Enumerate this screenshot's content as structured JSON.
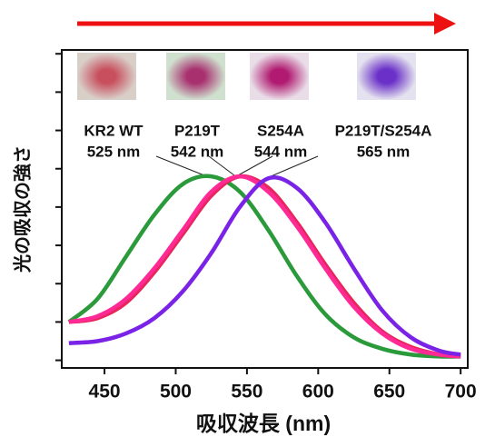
{
  "chart_data": {
    "type": "line",
    "x_label": "吸収波長 (nm)",
    "y_label": "光の吸収の強さ",
    "x": [
      425,
      445,
      465,
      485,
      505,
      525,
      545,
      565,
      585,
      605,
      625,
      645,
      665,
      685,
      700
    ],
    "series": [
      {
        "color": "#2a9a3a",
        "values": [
          1.0,
          1.6,
          2.7,
          3.8,
          4.6,
          4.8,
          4.4,
          3.4,
          2.2,
          1.2,
          0.6,
          0.3,
          0.15,
          0.1,
          0.1
        ]
      },
      {
        "color": "#e8255c",
        "values": [
          1.0,
          1.1,
          1.5,
          2.3,
          3.3,
          4.3,
          4.8,
          4.5,
          3.6,
          2.5,
          1.5,
          0.75,
          0.35,
          0.15,
          0.1
        ]
      },
      {
        "color": "#ff2a96",
        "values": [
          1.0,
          1.15,
          1.6,
          2.4,
          3.4,
          4.4,
          4.8,
          4.4,
          3.5,
          2.4,
          1.4,
          0.7,
          0.3,
          0.15,
          0.1
        ]
      },
      {
        "color": "#7a22e6",
        "values": [
          0.45,
          0.5,
          0.7,
          1.1,
          1.8,
          2.8,
          4.0,
          4.75,
          4.5,
          3.6,
          2.4,
          1.3,
          0.6,
          0.25,
          0.15
        ]
      }
    ],
    "annotations": [
      [
        "KR2 WT",
        "525 nm"
      ],
      [
        "P219T",
        "542 nm"
      ],
      [
        "S254A",
        "544 nm"
      ],
      [
        "P219T/S254A",
        "565 nm"
      ]
    ],
    "xlim": [
      420,
      705
    ],
    "xticks": [
      450,
      500,
      550,
      600,
      650,
      700
    ],
    "ylim": [
      -0.2,
      8.1
    ],
    "yticks": [
      0,
      1,
      2,
      3,
      4,
      5,
      6,
      7,
      8
    ]
  }
}
